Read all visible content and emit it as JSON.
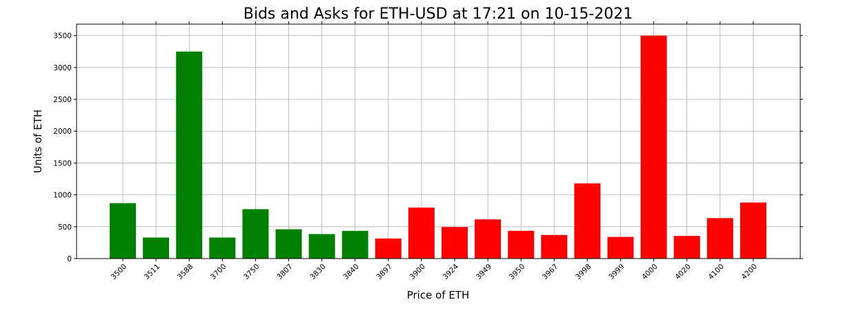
{
  "chart_data": {
    "type": "bar",
    "title": "Bids and Asks for ETH-USD at 17:21 on 10-15-2021",
    "xlabel": "Price of ETH",
    "ylabel": "Units of ETH",
    "ylim": [
      0,
      3680
    ],
    "yticks": [
      0,
      500,
      1000,
      1500,
      2000,
      2500,
      3000,
      3500
    ],
    "grid": true,
    "categories": [
      "3500",
      "3511",
      "3588",
      "3700",
      "3750",
      "3807",
      "3830",
      "3840",
      "3897",
      "3900",
      "3924",
      "3949",
      "3950",
      "3967",
      "3998",
      "3999",
      "4000",
      "4020",
      "4100",
      "4200"
    ],
    "series": [
      {
        "role": "bids",
        "color": "#008000",
        "values": [
          870,
          330,
          3250,
          330,
          775,
          460,
          385,
          435,
          null,
          null,
          null,
          null,
          null,
          null,
          null,
          null,
          null,
          null,
          null,
          null
        ]
      },
      {
        "role": "asks",
        "color": "#ff0000",
        "values": [
          null,
          null,
          null,
          null,
          null,
          null,
          null,
          null,
          315,
          800,
          495,
          615,
          435,
          370,
          1180,
          340,
          3500,
          355,
          635,
          880
        ]
      }
    ]
  }
}
